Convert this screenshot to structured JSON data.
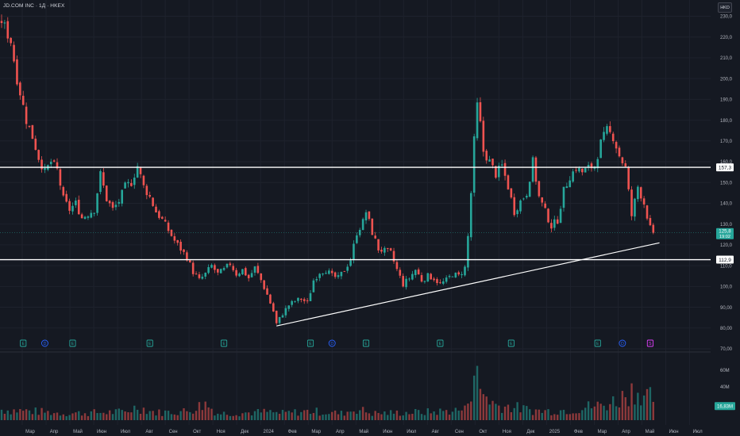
{
  "header": {
    "symbol_title": "JD.COM INC · 1Д · HKEX",
    "currency_button": "HKD"
  },
  "colors": {
    "background": "#151922",
    "grid": "#1e222d",
    "up": "#26a69a",
    "down": "#ef5350",
    "text": "#b2b5be",
    "level_line": "#ffffff",
    "trend_line": "#ffffff"
  },
  "chart_data": {
    "type": "candlestick",
    "price_axis": {
      "ticks": [
        {
          "value": 230,
          "label": "230,0"
        },
        {
          "value": 220,
          "label": "220,0"
        },
        {
          "value": 210,
          "label": "210,0"
        },
        {
          "value": 200,
          "label": "200,0"
        },
        {
          "value": 190,
          "label": "190,0"
        },
        {
          "value": 180,
          "label": "180,0"
        },
        {
          "value": 170,
          "label": "170,0"
        },
        {
          "value": 160,
          "label": "160,0"
        },
        {
          "value": 150,
          "label": "150,0"
        },
        {
          "value": 140,
          "label": "140,0"
        },
        {
          "value": 130,
          "label": "130,0"
        },
        {
          "value": 120,
          "label": "120,0"
        },
        {
          "value": 110,
          "label": "110,0"
        },
        {
          "value": 100,
          "label": "100,0"
        },
        {
          "value": 90,
          "label": "90,00"
        },
        {
          "value": 80,
          "label": "80,00"
        },
        {
          "value": 70,
          "label": "70,00"
        }
      ],
      "range": [
        70,
        234
      ]
    },
    "volume_axis": {
      "ticks": [
        {
          "value": 60,
          "label": "60M"
        },
        {
          "value": 40,
          "label": "40M"
        }
      ],
      "range": [
        0,
        76
      ]
    },
    "time_axis": {
      "labels": [
        "Мар",
        "Апр",
        "Май",
        "Июн",
        "Июл",
        "Авг",
        "Сен",
        "Окт",
        "Ноя",
        "Дек",
        "2024",
        "Фев",
        "Мар",
        "Апр",
        "Май",
        "Июн",
        "Июл",
        "Авг",
        "Сен",
        "Окт",
        "Ноя",
        "Дек",
        "2025",
        "Фев",
        "Мар",
        "Апр",
        "Май",
        "Июн",
        "Июл"
      ]
    },
    "horizontal_levels": [
      {
        "value": 157.3,
        "label": "157,3"
      },
      {
        "value": 112.9,
        "label": "112,9"
      }
    ],
    "trend_line": {
      "from_index": 89,
      "from_price": 81,
      "to_index": 213,
      "to_price": 121
    },
    "last_price": {
      "value": 125.8,
      "label": "125,8",
      "countdown": "19:02"
    },
    "last_volume": {
      "value": 16.83,
      "label": "16,83M"
    },
    "event_markers": [
      {
        "index": 7,
        "type": "E"
      },
      {
        "index": 14,
        "type": "D"
      },
      {
        "index": 23,
        "type": "E"
      },
      {
        "index": 48,
        "type": "E"
      },
      {
        "index": 72,
        "type": "E"
      },
      {
        "index": 100,
        "type": "E"
      },
      {
        "index": 107,
        "type": "D"
      },
      {
        "index": 118,
        "type": "E"
      },
      {
        "index": 142,
        "type": "E"
      },
      {
        "index": 165,
        "type": "E"
      },
      {
        "index": 193,
        "type": "E"
      },
      {
        "index": 201,
        "type": "D"
      },
      {
        "index": 210,
        "type": "S"
      }
    ],
    "price_path": [
      [
        0,
        228
      ],
      [
        3,
        218
      ],
      [
        5,
        200
      ],
      [
        8,
        180
      ],
      [
        10,
        172
      ],
      [
        12,
        162
      ],
      [
        14,
        155
      ],
      [
        16,
        160
      ],
      [
        18,
        156
      ],
      [
        20,
        142
      ],
      [
        22,
        137
      ],
      [
        24,
        140
      ],
      [
        26,
        133
      ],
      [
        28,
        135
      ],
      [
        30,
        137
      ],
      [
        32,
        154
      ],
      [
        34,
        142
      ],
      [
        36,
        137
      ],
      [
        38,
        141
      ],
      [
        40,
        148
      ],
      [
        42,
        150
      ],
      [
        44,
        158
      ],
      [
        46,
        148
      ],
      [
        48,
        143
      ],
      [
        50,
        136
      ],
      [
        52,
        132
      ],
      [
        54,
        127
      ],
      [
        56,
        122
      ],
      [
        58,
        118
      ],
      [
        60,
        114
      ],
      [
        62,
        107
      ],
      [
        64,
        103
      ],
      [
        66,
        106
      ],
      [
        68,
        110
      ],
      [
        70,
        106
      ],
      [
        72,
        108
      ],
      [
        74,
        111
      ],
      [
        76,
        106
      ],
      [
        78,
        108
      ],
      [
        80,
        104
      ],
      [
        82,
        109
      ],
      [
        84,
        103
      ],
      [
        86,
        96
      ],
      [
        88,
        88
      ],
      [
        89,
        82
      ],
      [
        91,
        87
      ],
      [
        93,
        91
      ],
      [
        95,
        93
      ],
      [
        97,
        94
      ],
      [
        99,
        92
      ],
      [
        101,
        103
      ],
      [
        103,
        107
      ],
      [
        105,
        108
      ],
      [
        107,
        105
      ],
      [
        109,
        104
      ],
      [
        111,
        108
      ],
      [
        113,
        113
      ],
      [
        115,
        126
      ],
      [
        117,
        131
      ],
      [
        118,
        136
      ],
      [
        120,
        126
      ],
      [
        122,
        118
      ],
      [
        124,
        117
      ],
      [
        126,
        116
      ],
      [
        128,
        108
      ],
      [
        130,
        101
      ],
      [
        132,
        104
      ],
      [
        134,
        108
      ],
      [
        136,
        103
      ],
      [
        138,
        105
      ],
      [
        140,
        104
      ],
      [
        142,
        101
      ],
      [
        144,
        103
      ],
      [
        146,
        106
      ],
      [
        148,
        105
      ],
      [
        150,
        109
      ],
      [
        151,
        124
      ],
      [
        152,
        145
      ],
      [
        153,
        170
      ],
      [
        154,
        187
      ],
      [
        155,
        178
      ],
      [
        156,
        165
      ],
      [
        158,
        160
      ],
      [
        160,
        154
      ],
      [
        162,
        158
      ],
      [
        164,
        148
      ],
      [
        166,
        136
      ],
      [
        168,
        141
      ],
      [
        170,
        145
      ],
      [
        172,
        160
      ],
      [
        174,
        143
      ],
      [
        176,
        136
      ],
      [
        178,
        129
      ],
      [
        180,
        132
      ],
      [
        182,
        146
      ],
      [
        184,
        153
      ],
      [
        186,
        157
      ],
      [
        188,
        155
      ],
      [
        190,
        157
      ],
      [
        192,
        158
      ],
      [
        194,
        169
      ],
      [
        196,
        175
      ],
      [
        198,
        172
      ],
      [
        200,
        163
      ],
      [
        202,
        157
      ],
      [
        204,
        134
      ],
      [
        206,
        148
      ],
      [
        208,
        140
      ],
      [
        210,
        128
      ],
      [
        211,
        125.8
      ]
    ],
    "volume_profile": [
      [
        0,
        14
      ],
      [
        10,
        12
      ],
      [
        20,
        9
      ],
      [
        30,
        10
      ],
      [
        40,
        11
      ],
      [
        44,
        18
      ],
      [
        50,
        10
      ],
      [
        60,
        12
      ],
      [
        66,
        22
      ],
      [
        70,
        9
      ],
      [
        80,
        10
      ],
      [
        86,
        11
      ],
      [
        90,
        9
      ],
      [
        100,
        12
      ],
      [
        110,
        9
      ],
      [
        115,
        15
      ],
      [
        120,
        9
      ],
      [
        130,
        10
      ],
      [
        140,
        11
      ],
      [
        150,
        14
      ],
      [
        152,
        45
      ],
      [
        153,
        70
      ],
      [
        155,
        40
      ],
      [
        160,
        20
      ],
      [
        165,
        18
      ],
      [
        170,
        14
      ],
      [
        175,
        12
      ],
      [
        180,
        13
      ],
      [
        185,
        14
      ],
      [
        190,
        18
      ],
      [
        195,
        20
      ],
      [
        200,
        28
      ],
      [
        204,
        40
      ],
      [
        207,
        38
      ],
      [
        210,
        30
      ],
      [
        211,
        17
      ]
    ]
  }
}
